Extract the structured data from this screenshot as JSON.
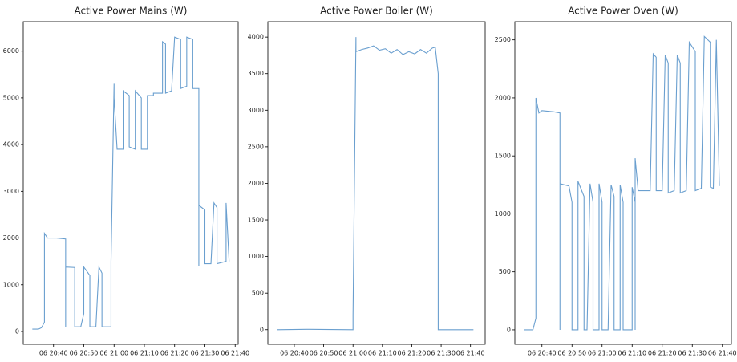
{
  "chart_data": [
    {
      "type": "line",
      "title": "Active Power Mains (W)",
      "color": "#6a9fcf",
      "x": [
        "06 20:33",
        "06 20:35",
        "06 20:36",
        "06 20:37",
        "06 20:37",
        "06 20:38",
        "06 20:41",
        "06 20:44",
        "06 20:44",
        "06 20:44",
        "06 20:47",
        "06 20:47",
        "06 20:49",
        "06 20:50",
        "06 20:50",
        "06 20:52",
        "06 20:52",
        "06 20:54",
        "06 20:55",
        "06 20:56",
        "06 20:56",
        "06 20:59",
        "06 20:59",
        "06 21:00",
        "06 21:00",
        "06 21:01",
        "06 21:03",
        "06 21:03",
        "06 21:05",
        "06 21:05",
        "06 21:07",
        "06 21:07",
        "06 21:09",
        "06 21:09",
        "06 21:11",
        "06 21:11",
        "06 21:13",
        "06 21:13",
        "06 21:16",
        "06 21:16",
        "06 21:17",
        "06 21:17",
        "06 21:19",
        "06 21:20",
        "06 21:22",
        "06 21:22",
        "06 21:24",
        "06 21:24",
        "06 21:26",
        "06 21:26",
        "06 21:28",
        "06 21:28",
        "06 21:28",
        "06 21:28",
        "06 21:30",
        "06 21:30",
        "06 21:32",
        "06 21:33",
        "06 21:34",
        "06 21:34",
        "06 21:37",
        "06 21:37",
        "06 21:38"
      ],
      "values": [
        50,
        50,
        80,
        200,
        2100,
        2000,
        2000,
        1980,
        100,
        1380,
        1370,
        100,
        100,
        380,
        1380,
        1200,
        100,
        100,
        1380,
        1250,
        100,
        100,
        1500,
        5300,
        5000,
        3900,
        3900,
        5150,
        5050,
        3950,
        3900,
        5150,
        5000,
        3900,
        3900,
        5050,
        5050,
        5100,
        5100,
        6200,
        6150,
        5100,
        5150,
        6300,
        6250,
        5200,
        5250,
        6300,
        6250,
        5200,
        5200,
        4900,
        1400,
        2700,
        2600,
        1450,
        1450,
        2750,
        2650,
        1450,
        1500,
        2750,
        1500
      ],
      "xlim": [
        "06 20:30",
        "06 21:41"
      ],
      "ylim": [
        -275,
        6630
      ],
      "xticks": [
        "06 20:40",
        "06 20:50",
        "06 21:00",
        "06 21:10",
        "06 21:20",
        "06 21:30",
        "06 21:40"
      ],
      "yticks": [
        0,
        1000,
        2000,
        3000,
        4000,
        5000,
        6000
      ]
    },
    {
      "type": "line",
      "title": "Active Power Boiler (W)",
      "color": "#6a9fcf",
      "x": [
        "06 20:34",
        "06 20:45",
        "06 21:00",
        "06 21:00",
        "06 21:01",
        "06 21:01",
        "06 21:03",
        "06 21:05",
        "06 21:07",
        "06 21:09",
        "06 21:11",
        "06 21:13",
        "06 21:15",
        "06 21:17",
        "06 21:19",
        "06 21:21",
        "06 21:23",
        "06 21:25",
        "06 21:27",
        "06 21:28",
        "06 21:29",
        "06 21:29",
        "06 21:35",
        "06 21:41"
      ],
      "values": [
        0,
        5,
        0,
        200,
        4000,
        3800,
        3830,
        3850,
        3880,
        3820,
        3840,
        3780,
        3830,
        3760,
        3800,
        3770,
        3830,
        3780,
        3850,
        3860,
        3500,
        0,
        0,
        0
      ],
      "xlim": [
        "06 20:31",
        "06 21:45"
      ],
      "ylim": [
        -200,
        4210
      ],
      "xticks": [
        "06 20:40",
        "06 20:50",
        "06 21:00",
        "06 21:10",
        "06 21:20",
        "06 21:30",
        "06 21:40"
      ],
      "yticks": [
        0,
        500,
        1000,
        1500,
        2000,
        2500,
        3000,
        3500,
        4000
      ]
    },
    {
      "type": "line",
      "title": "Active Power Oven (W)",
      "color": "#6a9fcf",
      "x": [
        "06 20:34",
        "06 20:37",
        "06 20:38",
        "06 20:38",
        "06 20:39",
        "06 20:40",
        "06 20:44",
        "06 20:46",
        "06 20:46",
        "06 20:46",
        "06 20:49",
        "06 20:50",
        "06 20:50",
        "06 20:52",
        "06 20:52",
        "06 20:54",
        "06 20:54",
        "06 20:55",
        "06 20:56",
        "06 20:57",
        "06 20:57",
        "06 20:59",
        "06 20:59",
        "06 21:00",
        "06 21:00",
        "06 21:02",
        "06 21:03",
        "06 21:04",
        "06 21:04",
        "06 21:06",
        "06 21:06",
        "06 21:07",
        "06 21:07",
        "06 21:10",
        "06 21:10",
        "06 21:11",
        "06 21:11",
        "06 21:11",
        "06 21:12",
        "06 21:16",
        "06 21:17",
        "06 21:18",
        "06 21:18",
        "06 21:20",
        "06 21:21",
        "06 21:22",
        "06 21:22",
        "06 21:24",
        "06 21:25",
        "06 21:26",
        "06 21:26",
        "06 21:28",
        "06 21:29",
        "06 21:31",
        "06 21:31",
        "06 21:33",
        "06 21:34",
        "06 21:36",
        "06 21:36",
        "06 21:37",
        "06 21:38",
        "06 21:39"
      ],
      "values": [
        0,
        0,
        100,
        2000,
        1870,
        1890,
        1880,
        1870,
        0,
        1260,
        1240,
        1100,
        0,
        0,
        1280,
        1150,
        0,
        0,
        1260,
        1100,
        0,
        0,
        1260,
        1100,
        0,
        0,
        1250,
        1150,
        0,
        0,
        1250,
        1100,
        0,
        0,
        1230,
        1100,
        0,
        1480,
        1200,
        1200,
        2380,
        2350,
        1200,
        1200,
        2370,
        2300,
        1180,
        1200,
        2370,
        2300,
        1180,
        1200,
        2480,
        2400,
        1200,
        1220,
        2530,
        2480,
        1230,
        1220,
        2500,
        1240
      ],
      "xlim": [
        "06 20:31",
        "06 21:43"
      ],
      "ylim": [
        -125,
        2657
      ],
      "xticks": [
        "06 20:40",
        "06 20:50",
        "06 21:00",
        "06 21:10",
        "06 21:20",
        "06 21:30",
        "06 21:40"
      ],
      "yticks": [
        0,
        500,
        1000,
        1500,
        2000,
        2500
      ]
    }
  ]
}
